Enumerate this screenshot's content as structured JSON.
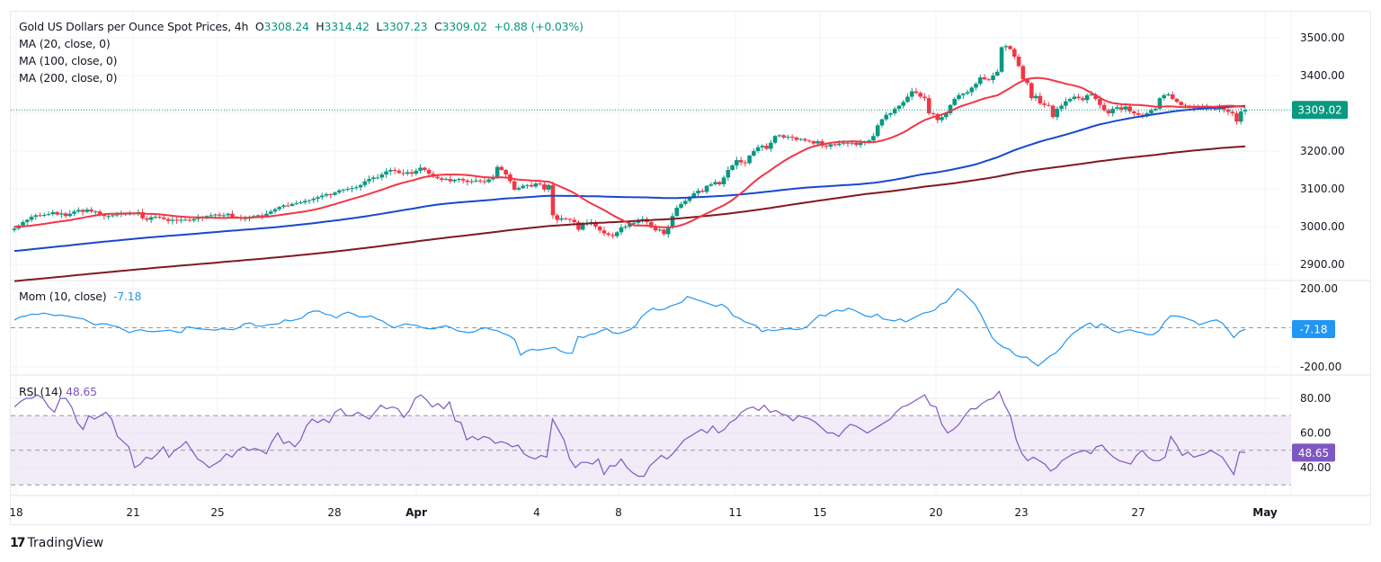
{
  "header": {
    "symbol_title": "Gold US Dollars per Ounce Spot Prices, 4h",
    "open_label": "O",
    "open": "3308.24",
    "high_label": "H",
    "high": "3314.42",
    "low_label": "L",
    "low": "3307.23",
    "close_label": "C",
    "close": "3309.02",
    "change": "+0.88 (+0.03%)",
    "ma_labels": [
      "MA (20, close, 0)",
      "MA (100, close, 0)",
      "MA (200, close, 0)"
    ]
  },
  "brand": {
    "logo": "17",
    "name": "TradingView"
  },
  "colors": {
    "up": "#089981",
    "down": "#f23645",
    "ma20": "#f23645",
    "ma100": "#1848cc",
    "ma200": "#801922",
    "mom": "#2196f3",
    "rsi": "#7e57c2",
    "last_price_bg": "#089981",
    "rsi_band": "#ede7f6"
  },
  "chart_data": [
    {
      "type": "candlestick",
      "title": "Gold US Dollars per Ounce Spot Prices, 4h",
      "x_ticks": [
        "18",
        "21",
        "25",
        "28",
        "Apr",
        "4",
        "8",
        "11",
        "15",
        "20",
        "23",
        "27",
        "May"
      ],
      "y_ticks": [
        "3500.00",
        "3400.00",
        "3300.00",
        "3200.00",
        "3100.00",
        "3000.00",
        "2900.00"
      ],
      "y_tick_values": [
        3500,
        3400,
        3300,
        3200,
        3100,
        3000,
        2900
      ],
      "ylim": [
        2870,
        3535
      ],
      "last_price": 3309.02,
      "last_price_label": "3309.02",
      "closes": [
        2995,
        3003,
        3012,
        3018,
        3026,
        3030,
        3029,
        3031,
        3033,
        3038,
        3032,
        3035,
        3028,
        3034,
        3040,
        3044,
        3039,
        3045,
        3040,
        3040,
        3032,
        3028,
        3028,
        3030,
        3032,
        3034,
        3032,
        3036,
        3035,
        3038,
        3022,
        3018,
        3025,
        3026,
        3024,
        3020,
        3015,
        3018,
        3016,
        3018,
        3018,
        3016,
        3020,
        3025,
        3024,
        3028,
        3030,
        3032,
        3029,
        3030,
        3034,
        3026,
        3024,
        3022,
        3022,
        3026,
        3028,
        3030,
        3028,
        3034,
        3040,
        3046,
        3052,
        3056,
        3055,
        3060,
        3062,
        3064,
        3068,
        3070,
        3074,
        3078,
        3082,
        3086,
        3084,
        3090,
        3096,
        3098,
        3100,
        3102,
        3104,
        3110,
        3120,
        3126,
        3130,
        3130,
        3138,
        3146,
        3150,
        3148,
        3142,
        3140,
        3144,
        3140,
        3148,
        3156,
        3150,
        3140,
        3132,
        3128,
        3124,
        3126,
        3120,
        3124,
        3126,
        3122,
        3118,
        3120,
        3122,
        3120,
        3118,
        3125,
        3132,
        3158,
        3150,
        3138,
        3120,
        3098,
        3102,
        3108,
        3110,
        3106,
        3114,
        3112,
        3098,
        3110,
        3030,
        3018,
        3022,
        3020,
        3018,
        3012,
        2992,
        3008,
        3010,
        3012,
        3000,
        2990,
        2982,
        2978,
        2975,
        2985,
        2998,
        3000,
        3008,
        3010,
        3018,
        3020,
        3012,
        2998,
        2990,
        2992,
        2980,
        3000,
        3028,
        3050,
        3060,
        3068,
        3078,
        3088,
        3095,
        3092,
        3108,
        3112,
        3118,
        3112,
        3130,
        3150,
        3162,
        3176,
        3170,
        3168,
        3188,
        3200,
        3210,
        3214,
        3206,
        3222,
        3240,
        3242,
        3236,
        3238,
        3236,
        3230,
        3232,
        3228,
        3226,
        3220,
        3226,
        3214,
        3212,
        3218,
        3216,
        3220,
        3222,
        3220,
        3222,
        3216,
        3222,
        3224,
        3228,
        3240,
        3268,
        3284,
        3296,
        3300,
        3312,
        3320,
        3330,
        3344,
        3358,
        3354,
        3344,
        3340,
        3300,
        3298,
        3282,
        3290,
        3300,
        3322,
        3338,
        3348,
        3352,
        3356,
        3368,
        3378,
        3395,
        3390,
        3388,
        3400,
        3410,
        3475,
        3478,
        3470,
        3450,
        3425,
        3390,
        3380,
        3340,
        3346,
        3326,
        3322,
        3320,
        3290,
        3312,
        3320,
        3332,
        3338,
        3344,
        3340,
        3335,
        3348,
        3350,
        3338,
        3322,
        3308,
        3300,
        3312,
        3316,
        3310,
        3318,
        3305,
        3300,
        3296,
        3292,
        3300,
        3308,
        3312,
        3340,
        3348,
        3350,
        3338,
        3330,
        3322,
        3320,
        3316,
        3314,
        3318,
        3312,
        3316,
        3312,
        3310,
        3318,
        3310,
        3304,
        3300,
        3278,
        3305,
        3309
      ]
    },
    {
      "type": "line",
      "title": "Mom (10, close)",
      "current_value": "-7.18",
      "y_ticks": [
        "200.00",
        "-200.00"
      ],
      "ylim": [
        -220,
        220
      ],
      "zero_line": 0,
      "values": [
        40,
        55,
        60,
        70,
        68,
        75,
        70,
        62,
        65,
        60,
        55,
        50,
        45,
        30,
        15,
        20,
        20,
        10,
        5,
        -10,
        -25,
        -15,
        -10,
        -18,
        -20,
        -18,
        -15,
        -12,
        -20,
        -25,
        5,
        0,
        -5,
        -8,
        -10,
        -12,
        -5,
        -8,
        -10,
        0,
        20,
        25,
        10,
        8,
        15,
        18,
        20,
        40,
        35,
        42,
        50,
        75,
        85,
        85,
        70,
        65,
        50,
        70,
        80,
        70,
        55,
        55,
        60,
        45,
        35,
        15,
        0,
        10,
        20,
        15,
        12,
        0,
        -5,
        -5,
        5,
        10,
        0,
        -15,
        -20,
        -25,
        -20,
        -5,
        0,
        -10,
        -15,
        -30,
        -40,
        -60,
        -140,
        -120,
        -110,
        -115,
        -110,
        -105,
        -100,
        -120,
        -130,
        -130,
        -45,
        -50,
        -35,
        -30,
        -15,
        -5,
        -25,
        -30,
        -20,
        -10,
        10,
        55,
        80,
        100,
        90,
        95,
        110,
        120,
        130,
        160,
        150,
        140,
        130,
        120,
        110,
        120,
        100,
        60,
        50,
        30,
        20,
        10,
        -20,
        -10,
        -15,
        -10,
        -5,
        -5,
        -10,
        -5,
        10,
        40,
        65,
        60,
        80,
        90,
        85,
        100,
        90,
        75,
        60,
        55,
        70,
        45,
        40,
        35,
        45,
        30,
        45,
        60,
        75,
        80,
        90,
        120,
        130,
        165,
        200,
        180,
        150,
        120,
        70,
        10,
        -50,
        -80,
        -100,
        -110,
        -140,
        -150,
        -150,
        -175,
        -195,
        -170,
        -145,
        -130,
        -100,
        -60,
        -30,
        -10,
        10,
        25,
        0,
        20,
        5,
        -15,
        -25,
        -15,
        -10,
        -20,
        -25,
        -35,
        -35,
        -15,
        30,
        60,
        60,
        55,
        45,
        35,
        15,
        25,
        35,
        40,
        25,
        -10,
        -50,
        -20,
        -7.18
      ]
    },
    {
      "type": "line",
      "title": "RSI (14)",
      "current_value": "48.65",
      "y_ticks": [
        "80.00",
        "60.00",
        "40.00"
      ],
      "ylim": [
        28,
        86
      ],
      "bands": {
        "upper": 70,
        "middle": 50,
        "lower": 30
      },
      "values": [
        75,
        78,
        80,
        80,
        82,
        80,
        75,
        72,
        80,
        80,
        75,
        66,
        62,
        70,
        68,
        70,
        72,
        68,
        58,
        55,
        52,
        40,
        42,
        46,
        45,
        48,
        52,
        46,
        50,
        52,
        55,
        50,
        45,
        43,
        40,
        42,
        44,
        48,
        46,
        50,
        52,
        50,
        51,
        50,
        48,
        55,
        60,
        54,
        55,
        52,
        56,
        64,
        68,
        66,
        68,
        66,
        72,
        74,
        70,
        70,
        72,
        70,
        68,
        72,
        76,
        74,
        75,
        74,
        69,
        73,
        80,
        82,
        79,
        75,
        77,
        74,
        78,
        67,
        66,
        56,
        58,
        56,
        58,
        57,
        54,
        55,
        54,
        52,
        53,
        48,
        46,
        45,
        47,
        46,
        68,
        62,
        56,
        45,
        40,
        43,
        43,
        42,
        45,
        36,
        41,
        41,
        45,
        40,
        37,
        35,
        35,
        41,
        44,
        47,
        45,
        48,
        52,
        56,
        58,
        60,
        62,
        60,
        64,
        60,
        62,
        66,
        68,
        72,
        74,
        75,
        73,
        76,
        72,
        73,
        71,
        70,
        67,
        70,
        69,
        68,
        66,
        63,
        60,
        60,
        58,
        62,
        65,
        64,
        62,
        60,
        62,
        64,
        66,
        68,
        72,
        75,
        76,
        78,
        80,
        82,
        76,
        75,
        65,
        60,
        62,
        65,
        70,
        74,
        74,
        77,
        79,
        80,
        84,
        76,
        70,
        56,
        48,
        44,
        46,
        44,
        42,
        38,
        40,
        44,
        46,
        48,
        49,
        50,
        48,
        52,
        53,
        49,
        46,
        44,
        43,
        42,
        47,
        50,
        46,
        44,
        44,
        46,
        58,
        53,
        47,
        49,
        46,
        47,
        48,
        50,
        48,
        46,
        41,
        36,
        49,
        48.65
      ]
    }
  ]
}
